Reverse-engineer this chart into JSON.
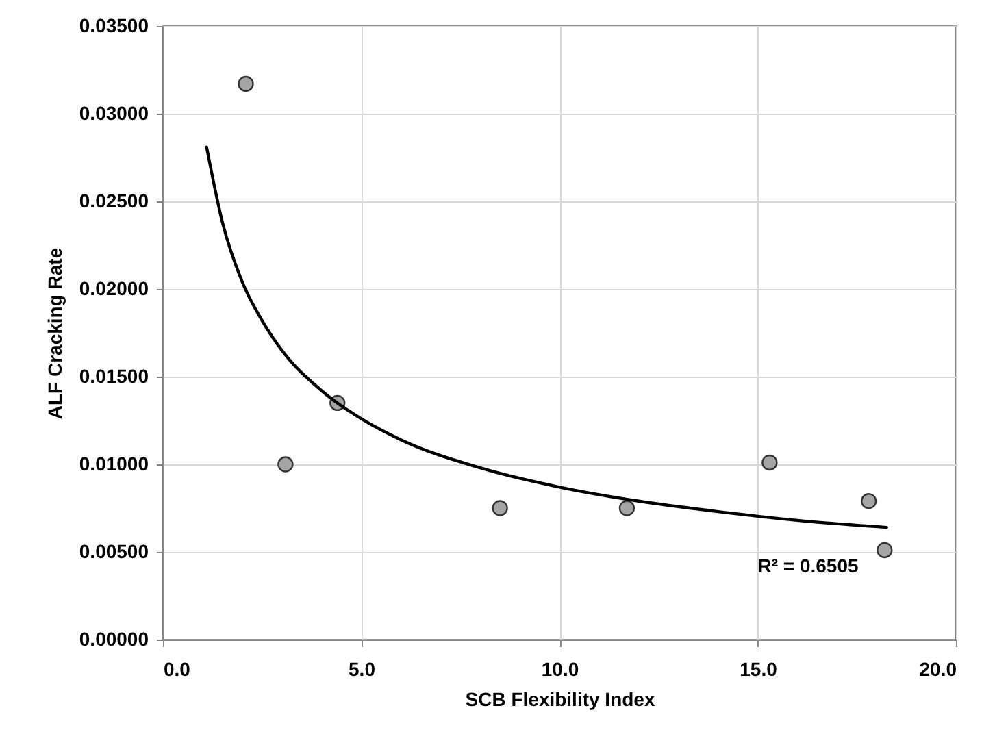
{
  "chart_data": {
    "type": "scatter",
    "xlabel": "SCB Flexibility Index",
    "ylabel": "ALF Cracking Rate",
    "xlim": [
      0,
      20
    ],
    "ylim": [
      0,
      0.035
    ],
    "xticks": [
      {
        "value": 0,
        "label": "0.0"
      },
      {
        "value": 5,
        "label": "5.0"
      },
      {
        "value": 10,
        "label": "10.0"
      },
      {
        "value": 15,
        "label": "15.0"
      },
      {
        "value": 20,
        "label": "20.0"
      }
    ],
    "yticks": [
      {
        "value": 0,
        "label": "0.00000"
      },
      {
        "value": 0.005,
        "label": "0.00500"
      },
      {
        "value": 0.01,
        "label": "0.01000"
      },
      {
        "value": 0.015,
        "label": "0.01500"
      },
      {
        "value": 0.02,
        "label": "0.02000"
      },
      {
        "value": 0.025,
        "label": "0.02500"
      },
      {
        "value": 0.03,
        "label": "0.03000"
      },
      {
        "value": 0.035,
        "label": "0.03500"
      }
    ],
    "grid": true,
    "series": [
      {
        "marker": "circle",
        "color": "#a5a5a5",
        "x": [
          2.09,
          3.09,
          4.4,
          8.5,
          11.7,
          15.3,
          17.8,
          18.2
        ],
        "values": [
          0.0317,
          0.01,
          0.0135,
          0.0075,
          0.0075,
          0.0101,
          0.0079,
          0.0051
        ]
      },
      {
        "type": "line",
        "color": "#000000",
        "x": [
          1.1,
          1.5,
          2,
          2.5,
          3,
          4,
          5,
          6,
          8,
          10,
          12,
          14,
          16,
          18.25
        ],
        "values": [
          0.0281,
          0.0238,
          0.0204,
          0.0182,
          0.0165,
          0.0142,
          0.0126,
          0.0114,
          0.0098,
          0.0087,
          0.0079,
          0.0073,
          0.0068,
          0.0064
        ]
      }
    ],
    "annotations": [
      "R² = 0.6505"
    ]
  }
}
